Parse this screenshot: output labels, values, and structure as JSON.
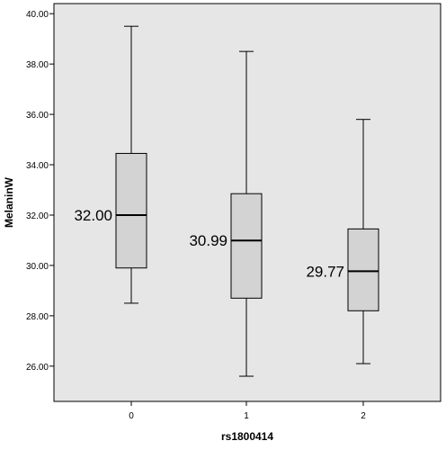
{
  "chart_data": {
    "type": "box",
    "xlabel": "rs1800414",
    "ylabel": "MelaninW",
    "ylim": [
      24.6,
      40.4
    ],
    "yticks": [
      "26.00",
      "28.00",
      "30.00",
      "32.00",
      "34.00",
      "36.00",
      "38.00",
      "40.00"
    ],
    "ytick_values": [
      26,
      28,
      30,
      32,
      34,
      36,
      38,
      40
    ],
    "categories": [
      "0",
      "1",
      "2"
    ],
    "boxes": [
      {
        "category": "0",
        "min": 28.5,
        "q1": 29.9,
        "median": 32.0,
        "q3": 34.45,
        "max": 39.5,
        "label": "32.00"
      },
      {
        "category": "1",
        "min": 25.6,
        "q1": 28.7,
        "median": 30.99,
        "q3": 32.85,
        "max": 38.5,
        "label": "30.99"
      },
      {
        "category": "2",
        "min": 26.1,
        "q1": 28.2,
        "median": 29.77,
        "q3": 31.45,
        "max": 35.8,
        "label": "29.77"
      }
    ],
    "grid": false,
    "colors": {
      "plot_background": "#e6e6e6",
      "box_fill": "#d3d3d3",
      "line": "#000000"
    }
  }
}
